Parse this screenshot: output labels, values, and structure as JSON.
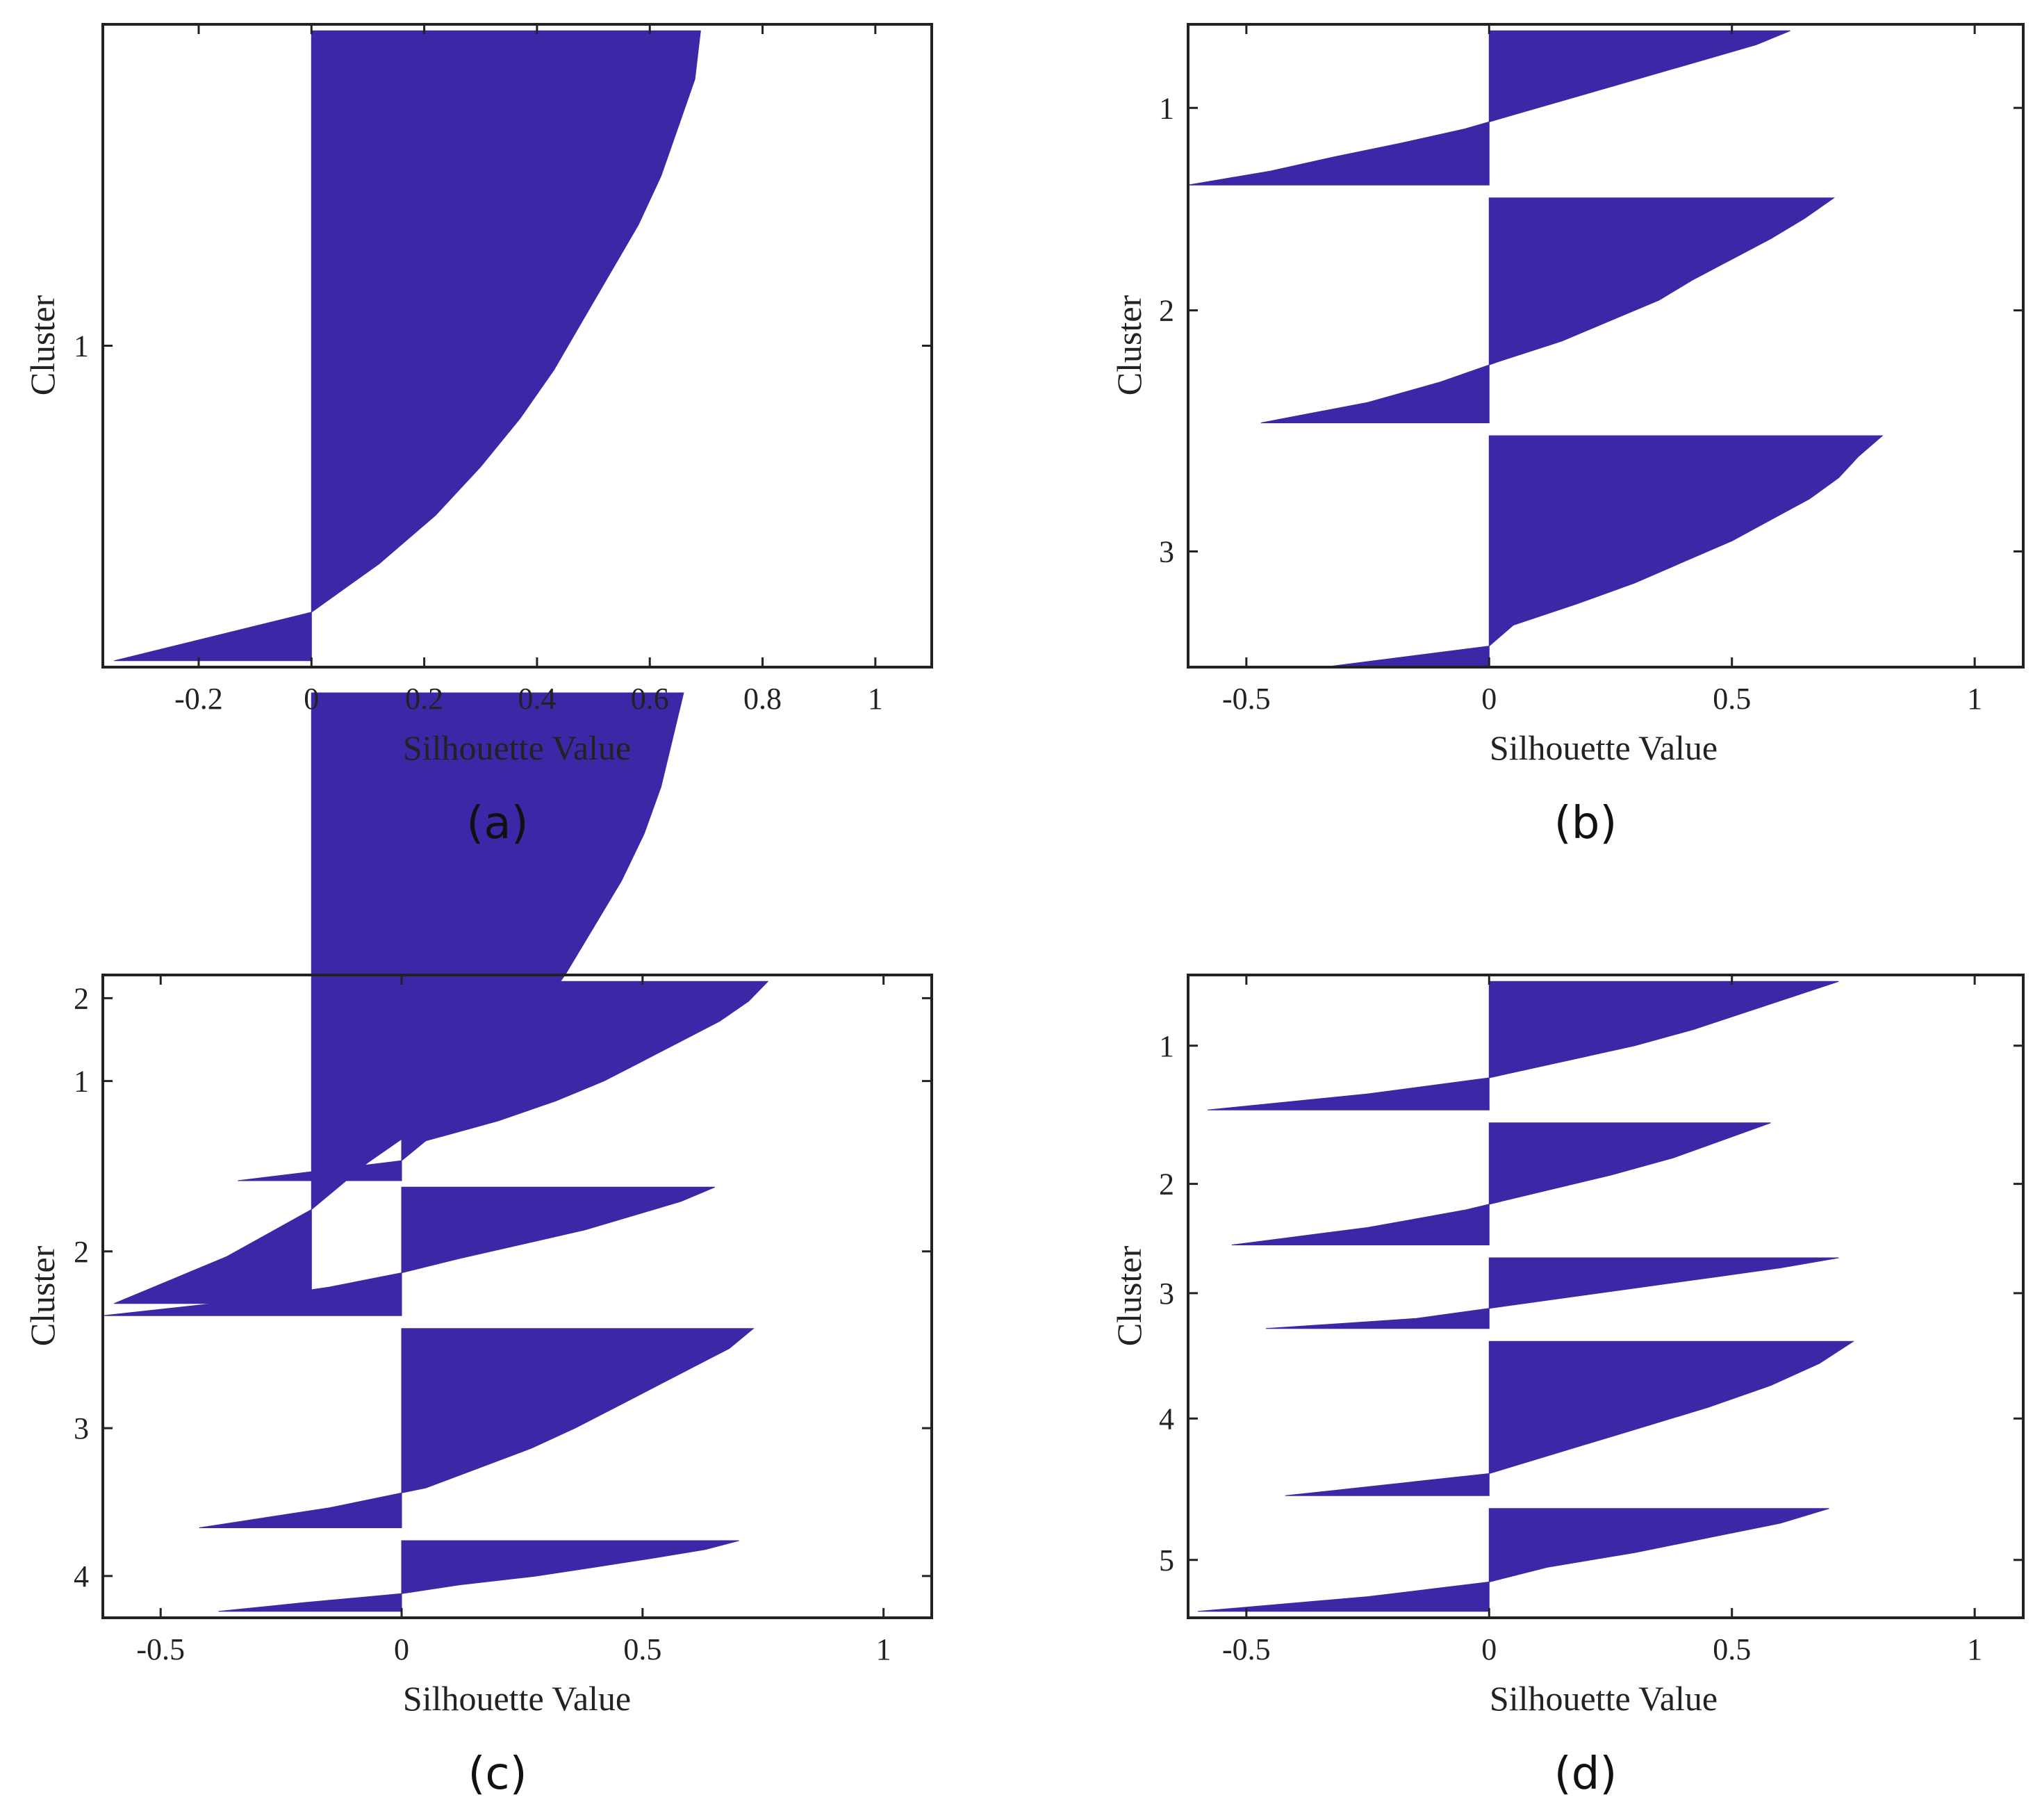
{
  "colors": {
    "bar": "#3c28a7",
    "axis": "#222222",
    "background": "#ffffff"
  },
  "chart_data": [
    {
      "id": "a",
      "type": "bar",
      "orientation": "horizontal",
      "caption": "(a)",
      "xlabel": "Silhouette Value",
      "ylabel": "Cluster",
      "xlim": [
        -0.37,
        1.1
      ],
      "xticks": [
        -0.2,
        0,
        0.2,
        0.4,
        0.6,
        0.8,
        1
      ],
      "xtick_labels": [
        "-0.2",
        "0",
        "0.2",
        "0.4",
        "0.6",
        "0.8",
        "1"
      ],
      "yticks": [
        1,
        2
      ],
      "ytick_labels": [
        "1",
        "2"
      ],
      "clusters": [
        {
          "label": "1",
          "rows": [
            0.01,
            0.99
          ],
          "values": [
            0.69,
            0.68,
            0.65,
            0.62,
            0.58,
            0.53,
            0.48,
            0.43,
            0.37,
            0.3,
            0.22,
            0.12,
            0.0,
            -0.35
          ]
        },
        {
          "label": "2",
          "rows": [
            1.04,
            1.99
          ],
          "values": [
            0.66,
            0.64,
            0.62,
            0.59,
            0.55,
            0.5,
            0.45,
            0.39,
            0.32,
            0.22,
            0.1,
            0.0,
            -0.15,
            -0.35
          ]
        }
      ]
    },
    {
      "id": "b",
      "type": "bar",
      "orientation": "horizontal",
      "caption": "(b)",
      "xlabel": "Silhouette Value",
      "ylabel": "Cluster",
      "xlim": [
        -0.62,
        1.1
      ],
      "xticks": [
        -0.5,
        0,
        0.5,
        1
      ],
      "xtick_labels": [
        "-0.5",
        "0",
        "0.5",
        "1"
      ],
      "yticks": [
        1,
        2,
        3
      ],
      "ytick_labels": [
        "1",
        "2",
        "3"
      ],
      "clusters": [
        {
          "label": "1",
          "rows": [
            0.01,
            0.25
          ],
          "values": [
            0.62,
            0.55,
            0.45,
            0.35,
            0.25,
            0.15,
            0.05,
            -0.05,
            -0.18,
            -0.32,
            -0.45,
            -0.62
          ]
        },
        {
          "label": "2",
          "rows": [
            0.27,
            0.62
          ],
          "values": [
            0.71,
            0.65,
            0.58,
            0.5,
            0.42,
            0.35,
            0.25,
            0.15,
            0.02,
            -0.1,
            -0.25,
            -0.47
          ]
        },
        {
          "label": "3",
          "rows": [
            0.64,
            1.0
          ],
          "values": [
            0.81,
            0.76,
            0.72,
            0.66,
            0.58,
            0.5,
            0.4,
            0.3,
            0.18,
            0.05,
            0.0,
            -0.34
          ]
        }
      ]
    },
    {
      "id": "c",
      "type": "bar",
      "orientation": "horizontal",
      "caption": "(c)",
      "xlabel": "Silhouette Value",
      "ylabel": "Cluster",
      "xlim": [
        -0.62,
        1.1
      ],
      "xticks": [
        -0.5,
        0,
        0.5,
        1
      ],
      "xtick_labels": [
        "-0.5",
        "0",
        "0.5",
        "1"
      ],
      "yticks": [
        1,
        2,
        3,
        4
      ],
      "ytick_labels": [
        "1",
        "2",
        "3",
        "4"
      ],
      "clusters": [
        {
          "label": "1",
          "rows": [
            0.01,
            0.32
          ],
          "values": [
            0.76,
            0.72,
            0.66,
            0.58,
            0.5,
            0.42,
            0.32,
            0.2,
            0.05,
            0.0,
            -0.34
          ]
        },
        {
          "label": "2",
          "rows": [
            0.33,
            0.53
          ],
          "values": [
            0.65,
            0.58,
            0.48,
            0.38,
            0.25,
            0.12,
            0.0,
            -0.15,
            -0.35,
            -0.62
          ]
        },
        {
          "label": "3",
          "rows": [
            0.55,
            0.86
          ],
          "values": [
            0.73,
            0.68,
            0.6,
            0.52,
            0.44,
            0.36,
            0.27,
            0.16,
            0.05,
            -0.15,
            -0.42
          ]
        },
        {
          "label": "4",
          "rows": [
            0.88,
            0.99
          ],
          "values": [
            0.7,
            0.63,
            0.52,
            0.4,
            0.28,
            0.12,
            0.0,
            -0.2,
            -0.38
          ]
        }
      ]
    },
    {
      "id": "d",
      "type": "bar",
      "orientation": "horizontal",
      "caption": "(d)",
      "xlabel": "Silhouette Value",
      "ylabel": "Cluster",
      "xlim": [
        -0.62,
        1.1
      ],
      "xticks": [
        -0.5,
        0,
        0.5,
        1
      ],
      "xtick_labels": [
        "-0.5",
        "0",
        "0.5",
        "1"
      ],
      "yticks": [
        1,
        2,
        3,
        4,
        5
      ],
      "ytick_labels": [
        "1",
        "2",
        "3",
        "4",
        "5"
      ],
      "clusters": [
        {
          "label": "1",
          "rows": [
            0.01,
            0.21
          ],
          "values": [
            0.72,
            0.62,
            0.52,
            0.42,
            0.3,
            0.15,
            0.0,
            -0.25,
            -0.58
          ]
        },
        {
          "label": "2",
          "rows": [
            0.23,
            0.42
          ],
          "values": [
            0.58,
            0.48,
            0.38,
            0.25,
            0.1,
            -0.05,
            -0.25,
            -0.53
          ]
        },
        {
          "label": "3",
          "rows": [
            0.44,
            0.55
          ],
          "values": [
            0.72,
            0.6,
            0.45,
            0.3,
            0.15,
            0.0,
            -0.15,
            -0.46
          ]
        },
        {
          "label": "4",
          "rows": [
            0.57,
            0.81
          ],
          "values": [
            0.75,
            0.68,
            0.58,
            0.45,
            0.3,
            0.15,
            0.0,
            -0.42
          ]
        },
        {
          "label": "5",
          "rows": [
            0.83,
            0.99
          ],
          "values": [
            0.7,
            0.6,
            0.45,
            0.3,
            0.12,
            0.0,
            -0.25,
            -0.6
          ]
        }
      ]
    }
  ]
}
